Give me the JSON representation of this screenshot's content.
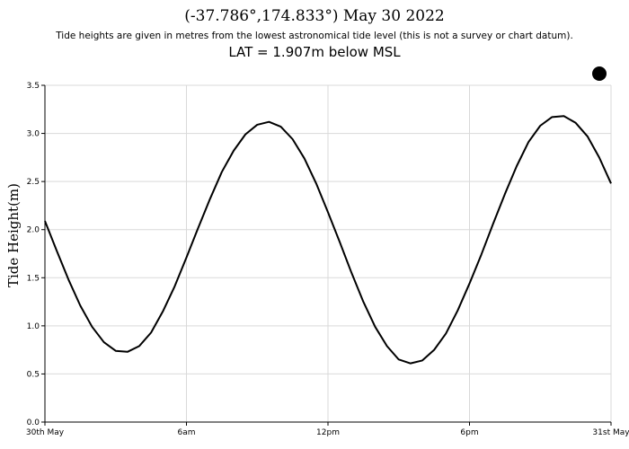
{
  "header": {
    "title": "(-37.786°,174.833°)  May 30 2022",
    "subtitle": "Tide heights are given in metres from the lowest astronomical tide level (this is not a survey or chart datum).",
    "lat_note": "LAT = 1.907m below MSL"
  },
  "moon_phase_icon": "full-moon-icon",
  "colors": {
    "line": "#000000",
    "grid": "#d9d9d9",
    "background": "#ffffff"
  },
  "chart_data": {
    "type": "line",
    "ylabel": "Tide Height(m)",
    "xlabel": "",
    "ylim": [
      0,
      3.5
    ],
    "xlim_hours": [
      0,
      24
    ],
    "grid": true,
    "y_ticks": [
      "0.0",
      "0.5",
      "1.0",
      "1.5",
      "2.0",
      "2.5",
      "3.0",
      "3.5"
    ],
    "x_ticks": [
      {
        "hour": 0,
        "label": "30th May"
      },
      {
        "hour": 6,
        "label": "6am"
      },
      {
        "hour": 12,
        "label": "12pm"
      },
      {
        "hour": 18,
        "label": "6pm"
      },
      {
        "hour": 24,
        "label": "31st May"
      }
    ],
    "series": [
      {
        "x": [
          0,
          0.5,
          1,
          1.5,
          2,
          2.5,
          3,
          3.5,
          4,
          4.5,
          5,
          5.5,
          6,
          6.5,
          7,
          7.5,
          8,
          8.5,
          9,
          9.5,
          10,
          10.5,
          11,
          11.5,
          12,
          12.5,
          13,
          13.5,
          14,
          14.5,
          15,
          15.5,
          16,
          16.5,
          17,
          17.5,
          18,
          18.5,
          19,
          19.5,
          20,
          20.5,
          21,
          21.5,
          22,
          22.5,
          23,
          23.5,
          24
        ],
        "y": [
          2.09,
          1.78,
          1.48,
          1.21,
          0.99,
          0.83,
          0.74,
          0.73,
          0.79,
          0.93,
          1.15,
          1.41,
          1.71,
          2.02,
          2.32,
          2.6,
          2.82,
          2.99,
          3.09,
          3.12,
          3.07,
          2.94,
          2.74,
          2.48,
          2.18,
          1.87,
          1.55,
          1.25,
          0.99,
          0.79,
          0.65,
          0.61,
          0.64,
          0.75,
          0.92,
          1.16,
          1.44,
          1.74,
          2.06,
          2.37,
          2.66,
          2.91,
          3.08,
          3.17,
          3.18,
          3.11,
          2.97,
          2.75,
          2.48
        ]
      }
    ]
  }
}
